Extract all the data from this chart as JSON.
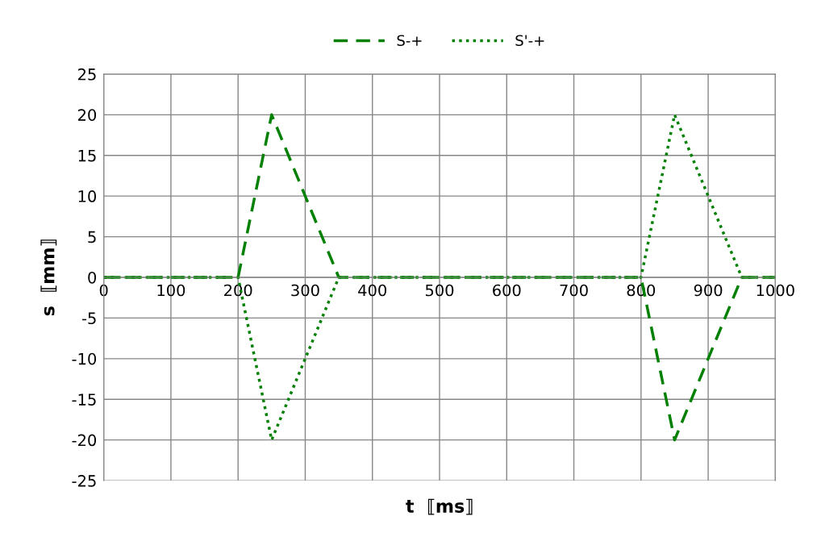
{
  "chart_data": {
    "type": "line",
    "xlabel": "t  ⟦ms⟧",
    "ylabel": "s  ⟦mm⟧",
    "xlim": [
      0,
      1000
    ],
    "xticks": [
      0,
      100,
      200,
      300,
      400,
      500,
      600,
      700,
      800,
      900,
      1000
    ],
    "ylim": [
      -25,
      25
    ],
    "yticks": [
      -25,
      -20,
      -15,
      -10,
      -5,
      0,
      5,
      10,
      15,
      20,
      25
    ],
    "grid": true,
    "legend": "top",
    "marker": "none",
    "series": [
      {
        "name": "S-+",
        "color": "#008000",
        "line_style": "dashed",
        "x": [
          0,
          200,
          250,
          350,
          800,
          850,
          950,
          1000
        ],
        "values": [
          0,
          0,
          20,
          0,
          0,
          -20,
          0,
          0
        ]
      },
      {
        "name": "S'-+",
        "color": "#008000",
        "line_style": "dotted",
        "x": [
          0,
          200,
          250,
          350,
          800,
          850,
          950,
          1000
        ],
        "values": [
          0,
          0,
          -20,
          0,
          0,
          20,
          0,
          0
        ]
      }
    ]
  }
}
